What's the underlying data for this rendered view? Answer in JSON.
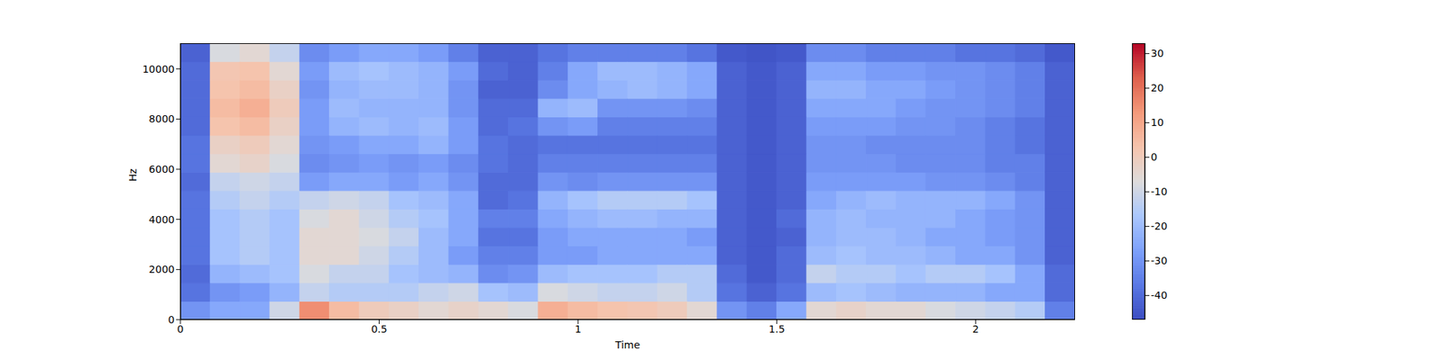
{
  "chart_data": {
    "type": "heatmap",
    "xlabel": "Time",
    "ylabel": "Hz",
    "xlim": [
      0,
      2.25
    ],
    "xticks": [
      0,
      0.5,
      1,
      1.5,
      2
    ],
    "ylim": [
      0,
      11025
    ],
    "yticks": [
      0,
      2000,
      4000,
      6000,
      8000,
      10000
    ],
    "time_bins": [
      0,
      0.075,
      0.15,
      0.225,
      0.3,
      0.375,
      0.45,
      0.525,
      0.6,
      0.675,
      0.75,
      0.825,
      0.9,
      0.975,
      1.05,
      1.125,
      1.2,
      1.275,
      1.35,
      1.425,
      1.5,
      1.575,
      1.65,
      1.725,
      1.8,
      1.875,
      1.95,
      2.025,
      2.1,
      2.175,
      2.25
    ],
    "freq_bins": [
      0,
      735,
      1470,
      2205,
      2940,
      3675,
      4410,
      5145,
      5880,
      6615,
      7350,
      8085,
      8820,
      9555,
      10290,
      11025
    ],
    "z": [
      [
        -30,
        -38,
        -40,
        -38,
        -38,
        -38,
        -38,
        -40,
        -38,
        -38,
        -40,
        -40,
        -40,
        -40,
        -42
      ],
      [
        -25,
        -30,
        -22,
        -18,
        -18,
        -18,
        -15,
        -12,
        -5,
        -2,
        3,
        5,
        3,
        2,
        -8
      ],
      [
        -25,
        -28,
        -20,
        -15,
        -15,
        -15,
        -12,
        -10,
        -3,
        0,
        5,
        8,
        5,
        3,
        -5
      ],
      [
        -10,
        -22,
        -18,
        -18,
        -18,
        -18,
        -15,
        -12,
        -8,
        -5,
        -2,
        0,
        -2,
        -5,
        -12
      ],
      [
        15,
        -12,
        -8,
        -5,
        -5,
        -8,
        -12,
        -28,
        -32,
        -30,
        -28,
        -28,
        -30,
        -28,
        -32
      ],
      [
        5,
        -15,
        -12,
        -5,
        -5,
        -5,
        -10,
        -25,
        -30,
        -28,
        -22,
        -20,
        -22,
        -20,
        -28
      ],
      [
        0,
        -15,
        -12,
        -10,
        -8,
        -10,
        -12,
        -25,
        -28,
        -25,
        -20,
        -22,
        -20,
        -18,
        -25
      ],
      [
        -2,
        -15,
        -18,
        -15,
        -12,
        -15,
        -18,
        -28,
        -30,
        -25,
        -22,
        -22,
        -20,
        -20,
        -25
      ],
      [
        -5,
        -12,
        -20,
        -20,
        -20,
        -18,
        -20,
        -25,
        -28,
        -22,
        -20,
        -22,
        -22,
        -22,
        -28
      ],
      [
        -3,
        -10,
        -22,
        -28,
        -25,
        -25,
        -25,
        -30,
        -32,
        -28,
        -28,
        -30,
        -30,
        -28,
        -35
      ],
      [
        -5,
        -18,
        -32,
        -35,
        -38,
        -35,
        -40,
        -40,
        -38,
        -38,
        -40,
        -40,
        -42,
        -40,
        -42
      ],
      [
        -8,
        -20,
        -30,
        -35,
        -38,
        -35,
        -38,
        -40,
        -40,
        -40,
        -38,
        -40,
        -42,
        -42,
        -42
      ],
      [
        8,
        -8,
        -20,
        -28,
        -28,
        -25,
        -22,
        -30,
        -35,
        -38,
        -30,
        -22,
        -32,
        -35,
        -38
      ],
      [
        5,
        -10,
        -18,
        -28,
        -25,
        -22,
        -18,
        -32,
        -35,
        -38,
        -28,
        -20,
        -25,
        -25,
        -35
      ],
      [
        3,
        -12,
        -18,
        -25,
        -25,
        -20,
        -15,
        -30,
        -35,
        -38,
        -35,
        -30,
        -22,
        -20,
        -35
      ],
      [
        2,
        -12,
        -18,
        -25,
        -25,
        -20,
        -15,
        -30,
        -35,
        -38,
        -35,
        -30,
        -20,
        -20,
        -35
      ],
      [
        0,
        -10,
        -15,
        -25,
        -25,
        -22,
        -15,
        -30,
        -35,
        -38,
        -35,
        -30,
        -22,
        -22,
        -35
      ],
      [
        -5,
        -15,
        -15,
        -25,
        -28,
        -22,
        -18,
        -30,
        -35,
        -38,
        -35,
        -32,
        -25,
        -25,
        -38
      ],
      [
        -30,
        -38,
        -40,
        -42,
        -42,
        -42,
        -42,
        -42,
        -42,
        -42,
        -42,
        -42,
        -42,
        -42,
        -44
      ],
      [
        -35,
        -42,
        -44,
        -44,
        -44,
        -44,
        -44,
        -44,
        -44,
        -44,
        -44,
        -44,
        -44,
        -44,
        -45
      ],
      [
        -25,
        -38,
        -40,
        -40,
        -42,
        -40,
        -42,
        -42,
        -42,
        -42,
        -42,
        -42,
        -42,
        -42,
        -44
      ],
      [
        -5,
        -20,
        -12,
        -20,
        -22,
        -22,
        -25,
        -28,
        -30,
        -30,
        -28,
        -25,
        -22,
        -25,
        -32
      ],
      [
        -3,
        -18,
        -15,
        -18,
        -20,
        -20,
        -22,
        -28,
        -30,
        -30,
        -28,
        -25,
        -22,
        -25,
        -32
      ],
      [
        -5,
        -20,
        -15,
        -20,
        -20,
        -22,
        -20,
        -28,
        -30,
        -32,
        -28,
        -25,
        -25,
        -28,
        -35
      ],
      [
        -5,
        -22,
        -18,
        -20,
        -22,
        -22,
        -22,
        -28,
        -32,
        -32,
        -30,
        -28,
        -25,
        -28,
        -35
      ],
      [
        -8,
        -22,
        -15,
        -22,
        -25,
        -22,
        -22,
        -30,
        -32,
        -32,
        -30,
        -30,
        -28,
        -30,
        -35
      ],
      [
        -10,
        -22,
        -15,
        -25,
        -25,
        -25,
        -22,
        -30,
        -32,
        -32,
        -32,
        -30,
        -30,
        -30,
        -38
      ],
      [
        -12,
        -25,
        -18,
        -25,
        -28,
        -28,
        -25,
        -32,
        -35,
        -35,
        -35,
        -32,
        -32,
        -32,
        -38
      ],
      [
        -15,
        -25,
        -25,
        -30,
        -30,
        -30,
        -30,
        -35,
        -35,
        -38,
        -38,
        -35,
        -35,
        -35,
        -40
      ],
      [
        -35,
        -40,
        -40,
        -42,
        -42,
        -42,
        -42,
        -42,
        -42,
        -42,
        -42,
        -42,
        -42,
        -42,
        -44
      ]
    ],
    "colorbar": {
      "range": [
        -47,
        33
      ],
      "ticks": [
        -40,
        -30,
        -20,
        -10,
        0,
        10,
        20,
        30
      ]
    }
  }
}
